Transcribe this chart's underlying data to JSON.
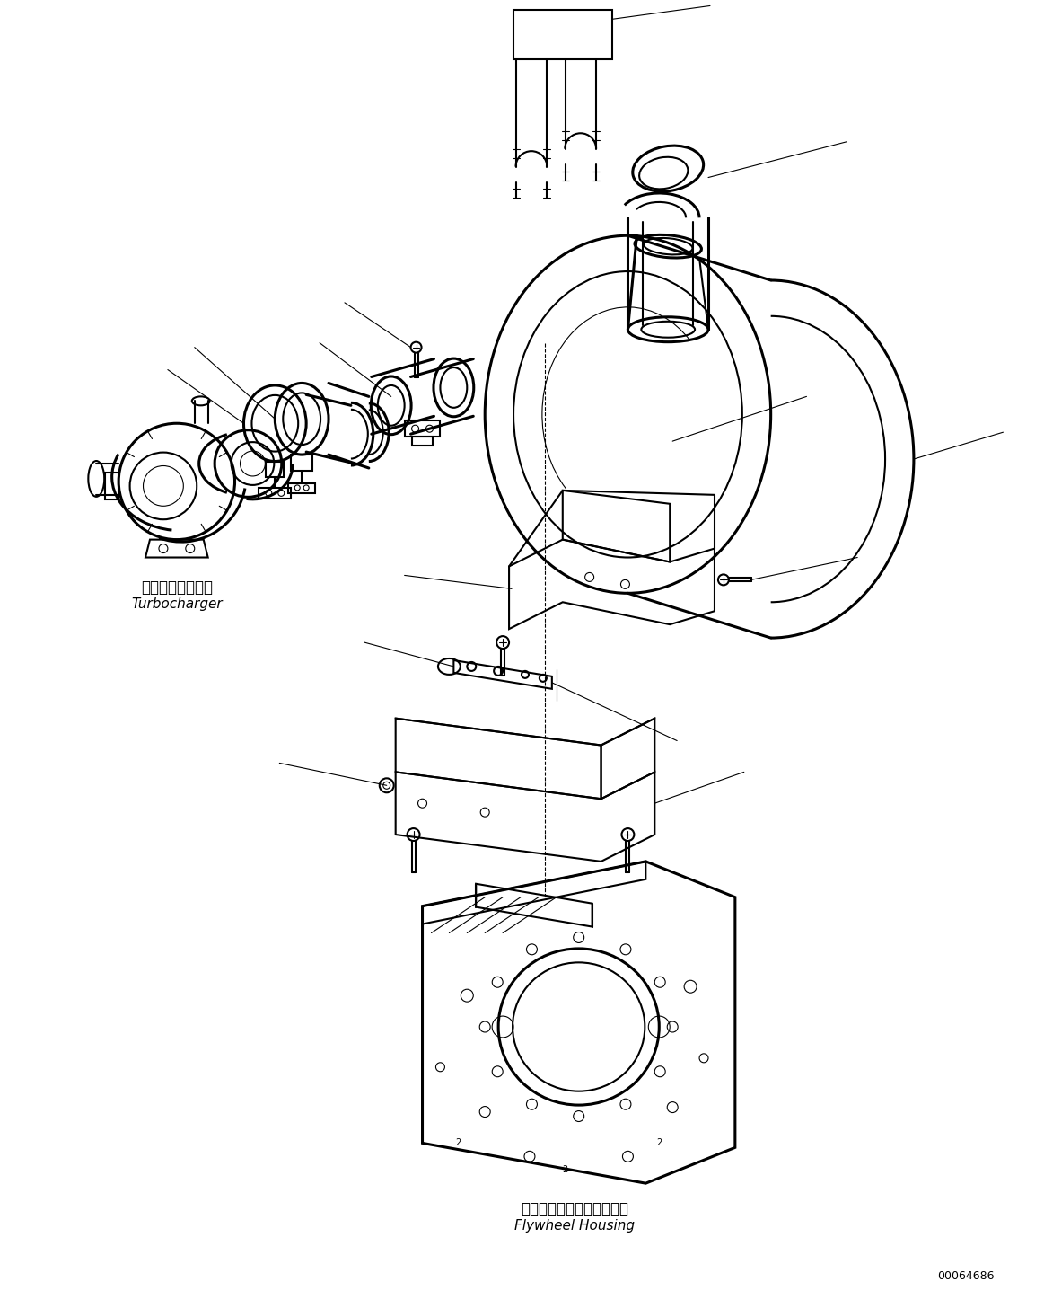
{
  "bg_color": "#ffffff",
  "line_color": "#000000",
  "lw": 1.5,
  "lw_thin": 0.8,
  "lw_thick": 2.2,
  "fig_width": 11.63,
  "fig_height": 14.56,
  "dpi": 100,
  "turbocharger_label_jp": "ターボチャージャ",
  "turbocharger_label_en": "Turbocharger",
  "flywheel_label_jp": "フライホイールハウジング",
  "flywheel_label_en": "Flywheel Housing",
  "part_number": "00064686"
}
